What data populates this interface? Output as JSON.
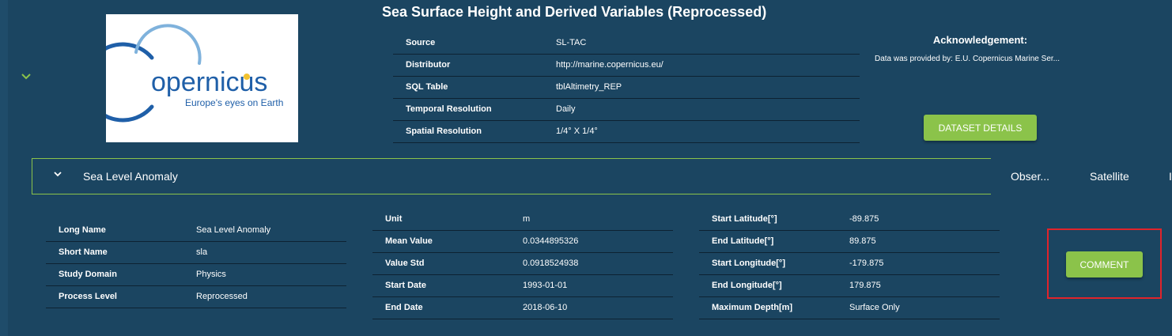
{
  "dataset": {
    "title": "Sea Surface Height and Derived Variables (Reprocessed)",
    "logo": {
      "word": "opernicus",
      "initial": "C",
      "tagline": "Europe's eyes on Earth"
    },
    "meta": [
      {
        "label": "Source",
        "value": "SL-TAC"
      },
      {
        "label": "Distributor",
        "value": "http://marine.copernicus.eu/"
      },
      {
        "label": "SQL Table",
        "value": "tblAltimetry_REP"
      },
      {
        "label": "Temporal Resolution",
        "value": "Daily"
      },
      {
        "label": "Spatial Resolution",
        "value": "1/4° X 1/4°"
      }
    ],
    "acknowledgement": {
      "title": "Acknowledgement:",
      "text": "Data was provided by: E.U. Copernicus Marine Ser..."
    },
    "details_button": "DATASET DETAILS"
  },
  "variable": {
    "name": "Sea Level Anomaly",
    "tags": [
      "Obser...",
      "Satellite",
      "I"
    ],
    "properties": [
      {
        "label": "Long Name",
        "value": "Sea Level Anomaly"
      },
      {
        "label": "Short Name",
        "value": "sla"
      },
      {
        "label": "Study Domain",
        "value": "Physics"
      },
      {
        "label": "Process Level",
        "value": "Reprocessed"
      }
    ],
    "stats": [
      {
        "label": "Unit",
        "value": "m"
      },
      {
        "label": "Mean Value",
        "value": "0.0344895326"
      },
      {
        "label": "Value Std",
        "value": "0.0918524938"
      },
      {
        "label": "Start Date",
        "value": "1993-01-01"
      },
      {
        "label": "End Date",
        "value": "2018-06-10"
      }
    ],
    "extent": [
      {
        "label": "Start Latitude[°]",
        "value": "-89.875"
      },
      {
        "label": "End Latitude[°]",
        "value": "89.875"
      },
      {
        "label": "Start Longitude[°]",
        "value": "-179.875"
      },
      {
        "label": "End Longitude[°]",
        "value": "179.875"
      },
      {
        "label": "Maximum Depth[m]",
        "value": "Surface Only"
      }
    ],
    "comment_button": "COMMENT"
  },
  "colors": {
    "background": "#1b4561",
    "accent_green": "#8bc34a",
    "highlight_red": "#e0242b",
    "logo_blue": "#1f5fa8",
    "logo_gold": "#f2c230"
  },
  "icons": [
    "chevron-down-icon",
    "copernicus-logo"
  ]
}
